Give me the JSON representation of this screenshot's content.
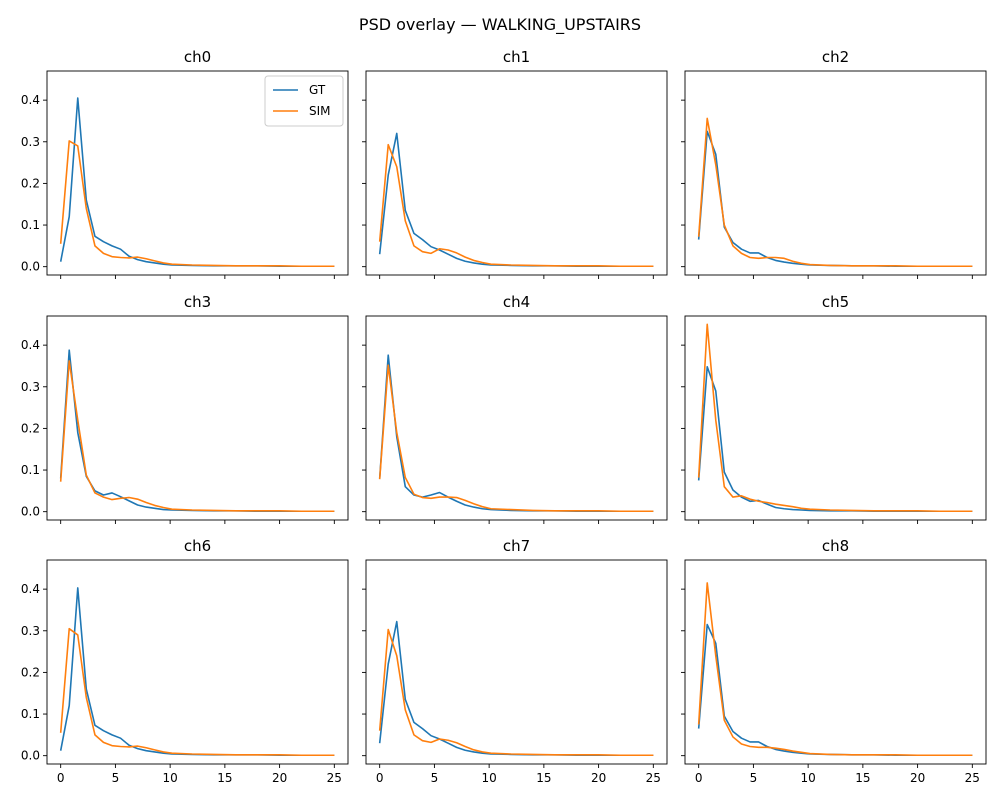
{
  "figure": {
    "title": "PSD overlay — WALKING_UPSTAIRS",
    "series_colors": {
      "GT": "#1f77b4",
      "SIM": "#ff7f0e"
    }
  },
  "chart_data": {
    "type": "line",
    "layout": "3x3 grid, shared x and y axes",
    "x": [
      0,
      0.78,
      1.56,
      2.34,
      3.13,
      3.91,
      4.69,
      5.47,
      6.25,
      7.03,
      7.81,
      8.59,
      9.38,
      10.16,
      12,
      14,
      16,
      18,
      20,
      22,
      25
    ],
    "xlim": [
      -1.25,
      26.25
    ],
    "ylim": [
      -0.02,
      0.47
    ],
    "xticks": [
      0,
      5,
      10,
      15,
      20,
      25
    ],
    "yticks": [
      0.0,
      0.1,
      0.2,
      0.3,
      0.4
    ],
    "ytick_labels": [
      "0.0",
      "0.1",
      "0.2",
      "0.3",
      "0.4"
    ],
    "legend": {
      "location": "upper-right",
      "panel": "ch0",
      "entries": [
        "GT",
        "SIM"
      ]
    },
    "panels": [
      {
        "title": "ch0",
        "series": [
          {
            "name": "GT",
            "values": [
              0.012,
              0.12,
              0.405,
              0.16,
              0.073,
              0.06,
              0.05,
              0.042,
              0.025,
              0.017,
              0.012,
              0.009,
              0.006,
              0.004,
              0.003,
              0.002,
              0.002,
              0.002,
              0.001,
              0.001,
              0.001
            ]
          },
          {
            "name": "SIM",
            "values": [
              0.055,
              0.302,
              0.29,
              0.14,
              0.05,
              0.032,
              0.024,
              0.022,
              0.021,
              0.023,
              0.019,
              0.014,
              0.009,
              0.006,
              0.004,
              0.003,
              0.002,
              0.002,
              0.002,
              0.001,
              0.001
            ]
          }
        ]
      },
      {
        "title": "ch1",
        "series": [
          {
            "name": "GT",
            "values": [
              0.03,
              0.22,
              0.32,
              0.135,
              0.08,
              0.065,
              0.048,
              0.04,
              0.03,
              0.02,
              0.013,
              0.009,
              0.006,
              0.004,
              0.003,
              0.002,
              0.002,
              0.001,
              0.001,
              0.001,
              0.001
            ]
          },
          {
            "name": "SIM",
            "values": [
              0.06,
              0.293,
              0.24,
              0.11,
              0.05,
              0.036,
              0.032,
              0.043,
              0.04,
              0.033,
              0.023,
              0.015,
              0.01,
              0.006,
              0.004,
              0.003,
              0.002,
              0.002,
              0.002,
              0.001,
              0.001
            ]
          }
        ]
      },
      {
        "title": "ch2",
        "series": [
          {
            "name": "GT",
            "values": [
              0.065,
              0.325,
              0.27,
              0.095,
              0.058,
              0.042,
              0.033,
              0.033,
              0.022,
              0.015,
              0.011,
              0.008,
              0.006,
              0.004,
              0.003,
              0.002,
              0.002,
              0.001,
              0.001,
              0.001,
              0.001
            ]
          },
          {
            "name": "SIM",
            "values": [
              0.072,
              0.356,
              0.245,
              0.1,
              0.05,
              0.032,
              0.022,
              0.02,
              0.022,
              0.022,
              0.02,
              0.013,
              0.008,
              0.005,
              0.003,
              0.002,
              0.002,
              0.002,
              0.001,
              0.001,
              0.001
            ]
          }
        ]
      },
      {
        "title": "ch3",
        "series": [
          {
            "name": "GT",
            "values": [
              0.08,
              0.388,
              0.19,
              0.085,
              0.05,
              0.04,
              0.045,
              0.036,
              0.026,
              0.016,
              0.011,
              0.008,
              0.005,
              0.004,
              0.003,
              0.002,
              0.002,
              0.001,
              0.001,
              0.001,
              0.001
            ]
          },
          {
            "name": "SIM",
            "values": [
              0.072,
              0.362,
              0.22,
              0.088,
              0.045,
              0.035,
              0.029,
              0.032,
              0.034,
              0.03,
              0.022,
              0.015,
              0.01,
              0.006,
              0.004,
              0.003,
              0.002,
              0.002,
              0.002,
              0.001,
              0.001
            ]
          }
        ]
      },
      {
        "title": "ch4",
        "series": [
          {
            "name": "GT",
            "values": [
              0.08,
              0.376,
              0.18,
              0.06,
              0.04,
              0.035,
              0.04,
              0.046,
              0.035,
              0.025,
              0.016,
              0.011,
              0.007,
              0.005,
              0.003,
              0.002,
              0.002,
              0.001,
              0.001,
              0.001,
              0.001
            ]
          },
          {
            "name": "SIM",
            "values": [
              0.078,
              0.352,
              0.19,
              0.082,
              0.042,
              0.034,
              0.032,
              0.035,
              0.035,
              0.034,
              0.027,
              0.019,
              0.012,
              0.007,
              0.005,
              0.003,
              0.002,
              0.002,
              0.002,
              0.001,
              0.001
            ]
          }
        ]
      },
      {
        "title": "ch5",
        "series": [
          {
            "name": "GT",
            "values": [
              0.075,
              0.348,
              0.29,
              0.095,
              0.052,
              0.035,
              0.025,
              0.027,
              0.018,
              0.01,
              0.007,
              0.005,
              0.004,
              0.003,
              0.002,
              0.002,
              0.001,
              0.001,
              0.001,
              0.001,
              0.001
            ]
          },
          {
            "name": "SIM",
            "values": [
              0.082,
              0.45,
              0.22,
              0.06,
              0.035,
              0.038,
              0.03,
              0.025,
              0.022,
              0.018,
              0.015,
              0.012,
              0.008,
              0.006,
              0.004,
              0.003,
              0.002,
              0.002,
              0.002,
              0.001,
              0.001
            ]
          }
        ]
      },
      {
        "title": "ch6",
        "series": [
          {
            "name": "GT",
            "values": [
              0.012,
              0.12,
              0.403,
              0.16,
              0.073,
              0.06,
              0.05,
              0.042,
              0.025,
              0.017,
              0.012,
              0.009,
              0.006,
              0.004,
              0.003,
              0.002,
              0.002,
              0.002,
              0.001,
              0.001,
              0.001
            ]
          },
          {
            "name": "SIM",
            "values": [
              0.055,
              0.305,
              0.29,
              0.14,
              0.05,
              0.032,
              0.024,
              0.022,
              0.021,
              0.023,
              0.019,
              0.014,
              0.009,
              0.006,
              0.004,
              0.003,
              0.002,
              0.002,
              0.002,
              0.001,
              0.001
            ]
          }
        ]
      },
      {
        "title": "ch7",
        "series": [
          {
            "name": "GT",
            "values": [
              0.03,
              0.22,
              0.322,
              0.135,
              0.08,
              0.065,
              0.048,
              0.04,
              0.03,
              0.02,
              0.013,
              0.009,
              0.006,
              0.004,
              0.003,
              0.002,
              0.002,
              0.001,
              0.001,
              0.001,
              0.001
            ]
          },
          {
            "name": "SIM",
            "values": [
              0.06,
              0.303,
              0.24,
              0.11,
              0.05,
              0.036,
              0.032,
              0.04,
              0.037,
              0.031,
              0.022,
              0.014,
              0.009,
              0.006,
              0.004,
              0.003,
              0.002,
              0.002,
              0.002,
              0.001,
              0.001
            ]
          }
        ]
      },
      {
        "title": "ch8",
        "series": [
          {
            "name": "GT",
            "values": [
              0.065,
              0.315,
              0.27,
              0.095,
              0.058,
              0.042,
              0.033,
              0.033,
              0.022,
              0.015,
              0.011,
              0.008,
              0.006,
              0.004,
              0.003,
              0.002,
              0.002,
              0.001,
              0.001,
              0.001,
              0.001
            ]
          },
          {
            "name": "SIM",
            "values": [
              0.075,
              0.415,
              0.24,
              0.085,
              0.045,
              0.028,
              0.022,
              0.02,
              0.02,
              0.018,
              0.015,
              0.011,
              0.008,
              0.005,
              0.003,
              0.002,
              0.002,
              0.002,
              0.001,
              0.001,
              0.001
            ]
          }
        ]
      }
    ]
  }
}
